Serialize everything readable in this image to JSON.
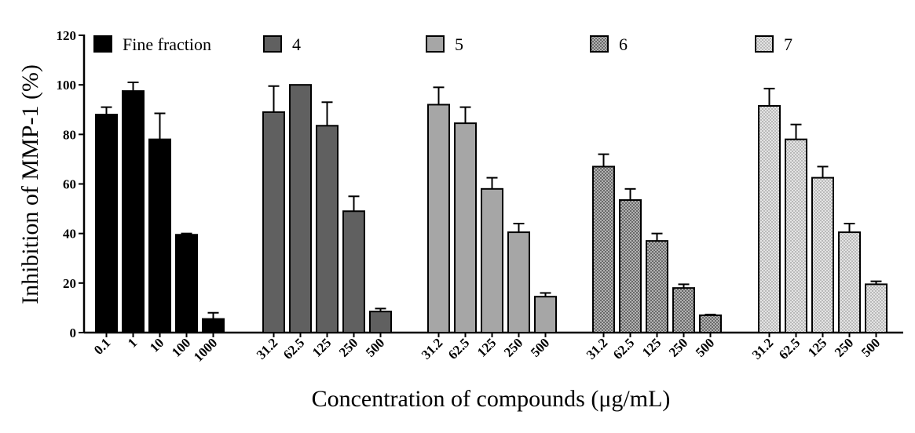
{
  "chart_data": {
    "type": "bar",
    "title": "",
    "xlabel": "Concentration of compounds (μg/mL)",
    "ylabel": "Inhibition of MMP-1 (%)",
    "ylim": [
      0,
      120
    ],
    "yticks": [
      "0",
      "20",
      "40",
      "60",
      "80",
      "100",
      "120"
    ],
    "legend_position": "top",
    "series": [
      {
        "name": "Fine fraction",
        "pattern": "solid-black",
        "categories": [
          "0.1",
          "1",
          "10",
          "100",
          "1000"
        ],
        "values": [
          88,
          97.5,
          78,
          39.5,
          5.5
        ],
        "errors": [
          3,
          3.5,
          10.5,
          0.5,
          2.5
        ]
      },
      {
        "name": "4",
        "pattern": "dark-gray",
        "categories": [
          "31.2",
          "62.5",
          "125",
          "250",
          "500"
        ],
        "values": [
          89,
          100,
          83.5,
          49,
          8.5
        ],
        "errors": [
          10.5,
          0,
          9.5,
          6,
          1.2
        ]
      },
      {
        "name": "5",
        "pattern": "light-gray",
        "categories": [
          "31.2",
          "62.5",
          "125",
          "250",
          "500"
        ],
        "values": [
          92,
          84.5,
          58,
          40.5,
          14.5
        ],
        "errors": [
          7,
          6.5,
          4.5,
          3.5,
          1.5
        ]
      },
      {
        "name": "6",
        "pattern": "dotted-dark",
        "categories": [
          "31.2",
          "62.5",
          "125",
          "250",
          "500"
        ],
        "values": [
          67,
          53.5,
          37,
          18,
          7
        ],
        "errors": [
          5,
          4.5,
          3,
          1.5,
          0.3
        ]
      },
      {
        "name": "7",
        "pattern": "dotted-light",
        "categories": [
          "31.2",
          "62.5",
          "125",
          "250",
          "500"
        ],
        "values": [
          91.5,
          78,
          62.5,
          40.5,
          19.5
        ],
        "errors": [
          7,
          6,
          4.5,
          3.5,
          1.2
        ]
      }
    ]
  },
  "colors": {
    "solid-black": "#000000",
    "dark-gray": "#606060",
    "light-gray": "#a6a6a6",
    "axis": "#000000",
    "bar-stroke": "#000000"
  }
}
